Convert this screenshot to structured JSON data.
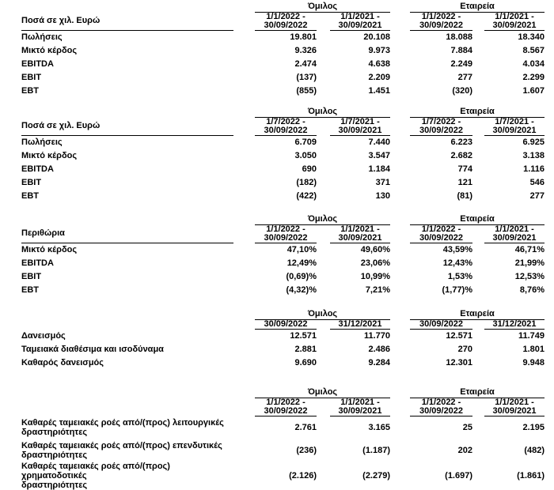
{
  "page": {
    "background_color": "#ffffff",
    "text_color": "#000000",
    "rule_color": "#000000",
    "language": "el"
  },
  "tables": [
    {
      "name": "income-statement-ytd",
      "label_header": "Ποσά σε χιλ. Ευρώ",
      "label_header_underline": true,
      "groups": [
        "Όμιλος",
        "Εταιρεία"
      ],
      "columns": [
        "1/1/2022 -\n30/09/2022",
        "1/1/2021 -\n30/09/2021",
        "1/1/2022 -\n30/09/2022",
        "1/1/2021 -\n30/09/2021"
      ],
      "rows": [
        {
          "label": "Πωλήσεις",
          "values": [
            "19.801",
            "20.108",
            "18.088",
            "18.340"
          ]
        },
        {
          "label": "Μικτό κέρδος",
          "values": [
            "9.326",
            "9.973",
            "7.884",
            "8.567"
          ]
        },
        {
          "label": "EBITDA",
          "values": [
            "2.474",
            "4.638",
            "2.249",
            "4.034"
          ]
        },
        {
          "label": "EBIT",
          "values": [
            "(137)",
            "2.209",
            "277",
            "2.299"
          ]
        },
        {
          "label": "EBT",
          "values": [
            "(855)",
            "1.451",
            "(320)",
            "1.607"
          ]
        }
      ]
    },
    {
      "name": "income-statement-quarter",
      "label_header": "Ποσά σε χιλ. Ευρώ",
      "label_header_underline": true,
      "groups": [
        "Όμιλος",
        "Εταιρεία"
      ],
      "columns": [
        "1/7/2022 -\n30/09/2022",
        "1/7/2021 -\n30/09/2021",
        "1/7/2022 -\n30/09/2022",
        "1/7/2021 -\n30/09/2021"
      ],
      "rows": [
        {
          "label": "Πωλήσεις",
          "values": [
            "6.709",
            "7.440",
            "6.223",
            "6.925"
          ]
        },
        {
          "label": "Μικτό κέρδος",
          "values": [
            "3.050",
            "3.547",
            "2.682",
            "3.138"
          ]
        },
        {
          "label": "EBITDA",
          "values": [
            "690",
            "1.184",
            "774",
            "1.116"
          ]
        },
        {
          "label": "EBIT",
          "values": [
            "(182)",
            "371",
            "121",
            "546"
          ]
        },
        {
          "label": "EBT",
          "values": [
            "(422)",
            "130",
            "(81)",
            "277"
          ]
        }
      ]
    },
    {
      "name": "margins",
      "label_header": "Περιθώρια",
      "label_header_underline": true,
      "groups": [
        "Όμιλος",
        "Εταιρεία"
      ],
      "columns": [
        "1/1/2022 -\n30/09/2022",
        "1/1/2021 -\n30/09/2021",
        "1/1/2022 -\n30/09/2022",
        "1/1/2021 -\n30/09/2021"
      ],
      "rows": [
        {
          "label": "Μικτό κέρδος",
          "values": [
            "47,10%",
            "49,60%",
            "43,59%",
            "46,71%"
          ]
        },
        {
          "label": "EBITDA",
          "values": [
            "12,49%",
            "23,06%",
            "12,43%",
            "21,99%"
          ]
        },
        {
          "label": "EBIT",
          "values": [
            "(0,69)%",
            "10,99%",
            "1,53%",
            "12,53%"
          ]
        },
        {
          "label": "EBT",
          "values": [
            "(4,32)%",
            "7,21%",
            "(1,77)%",
            "8,76%"
          ]
        }
      ]
    },
    {
      "name": "net-debt",
      "label_header": "",
      "label_header_underline": false,
      "groups": [
        "Όμιλος",
        "Εταιρεία"
      ],
      "columns": [
        "30/09/2022",
        "31/12/2021",
        "30/09/2022",
        "31/12/2021"
      ],
      "rows": [
        {
          "label": "Δανεισμός",
          "values": [
            "12.571",
            "11.770",
            "12.571",
            "11.749"
          ]
        },
        {
          "label": "Ταμειακά διαθέσιμα και ισοδύναμα",
          "values": [
            "2.881",
            "2.486",
            "270",
            "1.801"
          ]
        },
        {
          "label": "Καθαρός δανεισμός",
          "values": [
            "9.690",
            "9.284",
            "12.301",
            "9.948"
          ]
        }
      ]
    },
    {
      "name": "cash-flow",
      "label_header": "",
      "label_header_underline": false,
      "groups": [
        "Όμιλος",
        "Εταιρεία"
      ],
      "columns": [
        "1/1/2022 -\n30/09/2022",
        "1/1/2021 -\n30/09/2021",
        "1/1/2022 -\n30/09/2022",
        "1/1/2021 -\n30/09/2021"
      ],
      "rows": [
        {
          "label": "Καθαρές ταμειακές ροές από/(προς) λειτουργικές\nδραστηριότητες",
          "values": [
            "2.761",
            "3.165",
            "25",
            "2.195"
          ]
        },
        {
          "label": "Καθαρές ταμειακές ροές από/(προς) επενδυτικές\nδραστηριότητες",
          "values": [
            "(236)",
            "(1.187)",
            "202",
            "(482)"
          ]
        },
        {
          "label": "Καθαρές ταμειακές ροές από/(προς) χρηματοδοτικές\nδραστηριότητες",
          "values": [
            "(2.126)",
            "(2.279)",
            "(1.697)",
            "(1.861)"
          ]
        }
      ]
    }
  ]
}
